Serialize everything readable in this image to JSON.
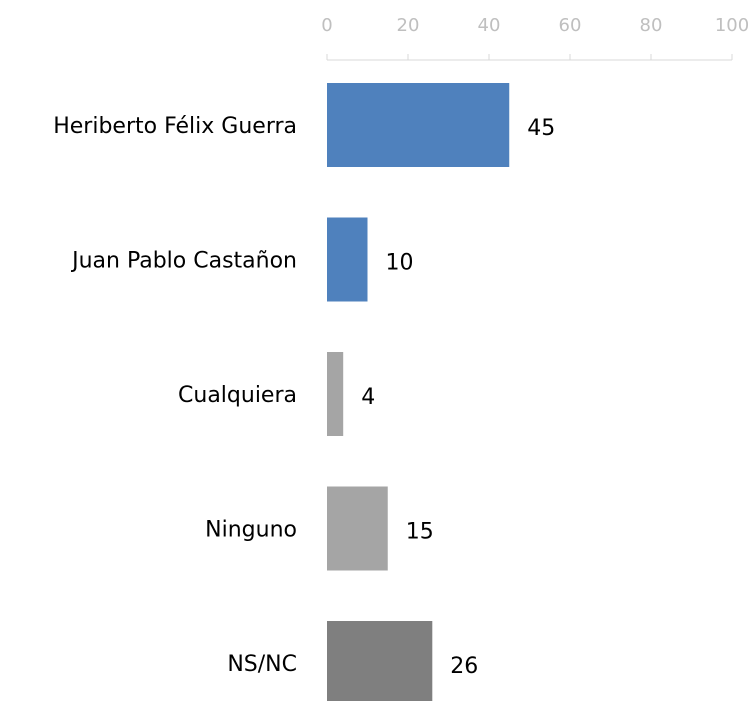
{
  "chart_data": {
    "type": "bar",
    "orientation": "horizontal",
    "categories": [
      "Heriberto Félix Guerra",
      "Juan Pablo Castañon",
      "Cualquiera",
      "Ninguno",
      "NS/NC"
    ],
    "values": [
      45,
      10,
      4,
      15,
      26
    ],
    "colors": [
      "#4f81bd",
      "#4f81bd",
      "#a5a5a5",
      "#a5a5a5",
      "#7f7f7f"
    ],
    "xlim": [
      0,
      100
    ],
    "xticks": [
      0,
      20,
      40,
      60,
      80,
      100
    ],
    "axis_position": "top",
    "grid": false
  }
}
